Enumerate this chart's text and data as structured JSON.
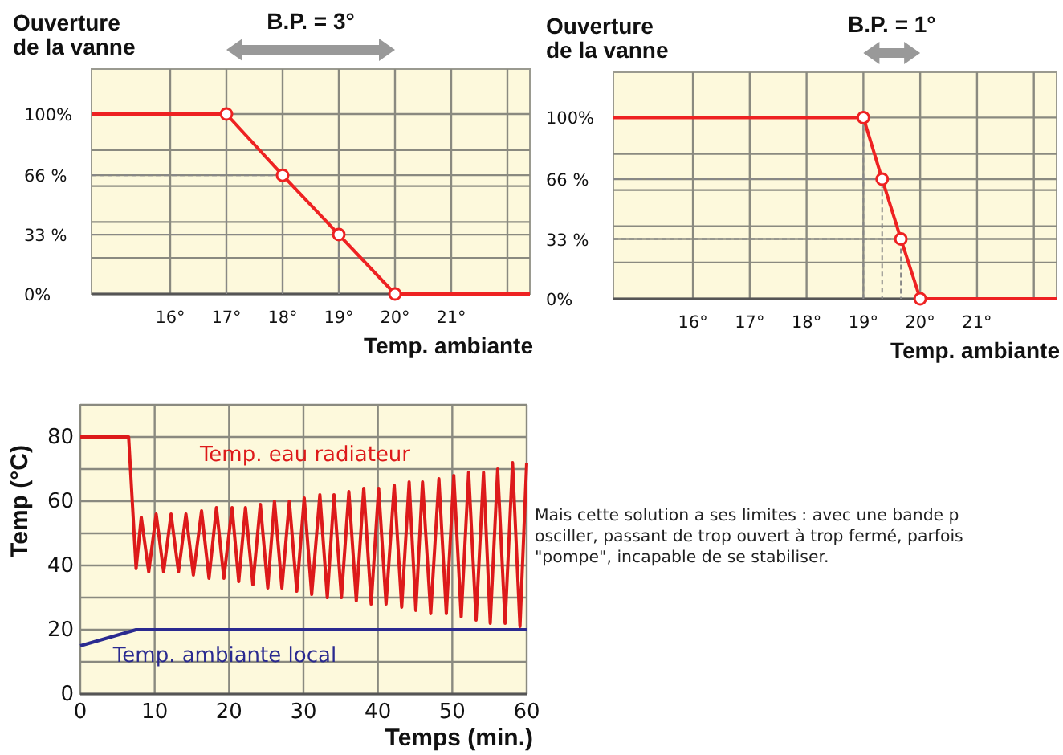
{
  "chart_data": [
    {
      "type": "line",
      "ylabel": "Ouverture de la vanne",
      "xlabel": "Temp. ambiante",
      "annotations": [
        "B.P. = 3°"
      ],
      "xlim": [
        14.6,
        22.4
      ],
      "ylim": [
        0,
        125
      ],
      "xticks": [
        {
          "value": 16,
          "label": "16°"
        },
        {
          "value": 17,
          "label": "17°"
        },
        {
          "value": 18,
          "label": "18°"
        },
        {
          "value": 19,
          "label": "19°"
        },
        {
          "value": 20,
          "label": "20°"
        },
        {
          "value": 21,
          "label": "21°"
        },
        {
          "value": 22,
          "label": null
        }
      ],
      "yticks": [
        {
          "value": 0,
          "label": "0%"
        },
        {
          "value": 20,
          "label": null
        },
        {
          "value": 33,
          "label": "33 %"
        },
        {
          "value": 40,
          "label": null
        },
        {
          "value": 60,
          "label": null
        },
        {
          "value": 66,
          "label": "66 %"
        },
        {
          "value": 80,
          "label": null
        },
        {
          "value": 100,
          "label": "100%"
        }
      ],
      "grid": true,
      "series": [
        {
          "type": "line",
          "color": "#ee2222",
          "x": [
            14.6,
            17,
            18,
            19,
            20,
            22.4
          ],
          "values": [
            100,
            100,
            66,
            33,
            0,
            0
          ]
        },
        {
          "type": "line",
          "color": "#888888",
          "line_style": "dashed",
          "x": [
            17,
            17
          ],
          "values": [
            100,
            0
          ]
        },
        {
          "type": "line",
          "color": "#888888",
          "line_style": "dashed",
          "x": [
            14.6,
            18,
            18
          ],
          "values": [
            66,
            66,
            0
          ]
        },
        {
          "type": "line",
          "color": "#888888",
          "line_style": "dashed",
          "x": [
            14.6,
            19,
            19
          ],
          "values": [
            33,
            33,
            0
          ]
        },
        {
          "type": "scatter",
          "color": "#ee2222",
          "marker": "circle",
          "x": [
            17,
            18,
            19,
            20
          ],
          "values": [
            100,
            66,
            33,
            0
          ]
        }
      ]
    },
    {
      "type": "line",
      "ylabel": "Ouverture de la vanne",
      "xlabel": "Temp. ambiante",
      "annotations": [
        "B.P. = 1°"
      ],
      "xlim": [
        14.6,
        22.4
      ],
      "ylim": [
        0,
        125
      ],
      "xticks": [
        {
          "value": 16,
          "label": "16°"
        },
        {
          "value": 17,
          "label": "17°"
        },
        {
          "value": 18,
          "label": "18°"
        },
        {
          "value": 19,
          "label": "19°"
        },
        {
          "value": 20,
          "label": "20°"
        },
        {
          "value": 21,
          "label": "21°"
        },
        {
          "value": 22,
          "label": null
        }
      ],
      "yticks": [
        {
          "value": 0,
          "label": "0%"
        },
        {
          "value": 20,
          "label": null
        },
        {
          "value": 33,
          "label": "33 %"
        },
        {
          "value": 40,
          "label": null
        },
        {
          "value": 60,
          "label": null
        },
        {
          "value": 66,
          "label": "66 %"
        },
        {
          "value": 80,
          "label": null
        },
        {
          "value": 100,
          "label": "100%"
        }
      ],
      "grid": true,
      "series": [
        {
          "type": "line",
          "color": "#ee2222",
          "x": [
            14.6,
            19,
            19.33,
            19.66,
            20,
            22.4
          ],
          "values": [
            100,
            100,
            66,
            33,
            0,
            0
          ]
        },
        {
          "type": "line",
          "color": "#888888",
          "line_style": "dashed",
          "x": [
            19,
            19
          ],
          "values": [
            100,
            0
          ]
        },
        {
          "type": "line",
          "color": "#888888",
          "line_style": "dashed",
          "x": [
            14.6,
            19.33,
            19.33
          ],
          "values": [
            66,
            66,
            0
          ]
        },
        {
          "type": "line",
          "color": "#888888",
          "line_style": "dashed",
          "x": [
            14.6,
            19.66,
            19.66
          ],
          "values": [
            33,
            33,
            0
          ]
        },
        {
          "type": "scatter",
          "color": "#ee2222",
          "marker": "circle",
          "x": [
            19,
            19.33,
            19.66,
            20
          ],
          "values": [
            100,
            66,
            33,
            0
          ]
        }
      ]
    },
    {
      "type": "line",
      "ylabel": "Temp (°C)",
      "xlabel": "Temps (min.)",
      "xlim": [
        0,
        60
      ],
      "ylim": [
        0,
        90
      ],
      "xticks": [
        0,
        10,
        20,
        30,
        40,
        50,
        60
      ],
      "yticks": [
        0,
        {
          "value": 10,
          "label": null
        },
        20,
        {
          "value": 30,
          "label": null
        },
        40,
        {
          "value": 50,
          "label": null
        },
        60,
        {
          "value": 70,
          "label": null
        },
        80,
        {
          "value": 90,
          "label": null
        }
      ],
      "grid": true,
      "series": [
        {
          "type": "line",
          "name": "Temp. eau radiateur",
          "color": "#dd1a1a",
          "x": [
            0,
            6.5,
            7.5,
            8.2,
            9.2,
            10.2,
            11.2,
            12.2,
            13.2,
            14.2,
            15.2,
            16.3,
            17.3,
            18.3,
            19.3,
            20.4,
            21.3,
            22.2,
            23.2,
            24.2,
            25.2,
            26.1,
            27.1,
            28.1,
            29.1,
            30.1,
            31.1,
            32.2,
            33.2,
            34.1,
            35.1,
            36.1,
            37.1,
            38.1,
            39.1,
            40.1,
            41.1,
            42.2,
            43.2,
            44.2,
            45.1,
            46,
            47.1,
            48.2,
            49.2,
            50.2,
            51.2,
            52.2,
            53.2,
            54.2,
            55.1,
            56.1,
            57.1,
            58.1,
            59.1,
            60
          ],
          "values": [
            80,
            80,
            39,
            55,
            38,
            56,
            38,
            56,
            38,
            56,
            37,
            57,
            36,
            58,
            36,
            58,
            35,
            58,
            34,
            59,
            33,
            60,
            33,
            60,
            32,
            61,
            31,
            62,
            30,
            62,
            30,
            63,
            29,
            64,
            28,
            64,
            28,
            65,
            27,
            66,
            26,
            66,
            25,
            67,
            25,
            68,
            24,
            69,
            23,
            69,
            22,
            70,
            22,
            72,
            21,
            72
          ]
        },
        {
          "type": "line",
          "name": "Temp. ambiante local",
          "color": "#2a2a90",
          "x": [
            0,
            7.5,
            60
          ],
          "values": [
            15,
            20,
            20
          ]
        }
      ]
    },
    {
      "type": "other",
      "annotations": [
        "Mais cette solution a ses limites : avec une bande p",
        "osciller, passant de trop ouvert à trop fermé, parfois",
        "\"pompe\", incapable de se stabiliser."
      ]
    }
  ]
}
